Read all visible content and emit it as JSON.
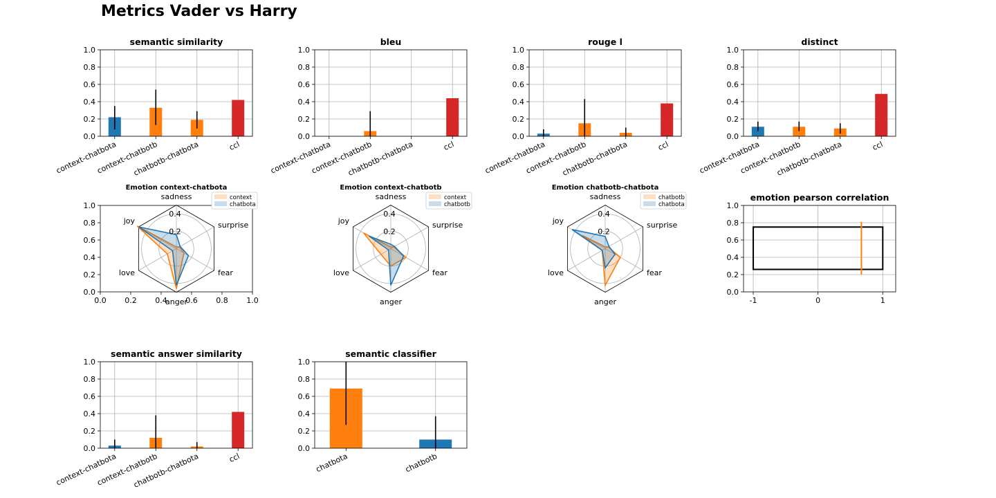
{
  "figure": {
    "title": "Metrics Vader vs Harry"
  },
  "colors": {
    "blue": "#1f77b4",
    "orange": "#ff7f0e",
    "red": "#d62728",
    "grid": "#b0b0b0"
  },
  "chart_data": [
    {
      "type": "bar",
      "title": "semantic similarity",
      "categories": [
        "context-chatbota",
        "context-chatbotb",
        "chatbotb-chatbota",
        "ccl"
      ],
      "values": [
        0.22,
        0.33,
        0.19,
        0.42
      ],
      "errors": [
        [
          0.08,
          0.35
        ],
        [
          0.13,
          0.54
        ],
        [
          0.09,
          0.29
        ],
        null
      ],
      "bar_colors": [
        "blue",
        "orange",
        "orange",
        "red"
      ],
      "ylim": [
        0,
        1
      ],
      "yticks": [
        "0.0",
        "0.2",
        "0.4",
        "0.6",
        "0.8",
        "1.0"
      ],
      "grid": true
    },
    {
      "type": "bar",
      "title": "bleu",
      "categories": [
        "context-chatbota",
        "context-chatbotb",
        "chatbotb-chatbota",
        "ccl"
      ],
      "values": [
        0.0,
        0.06,
        0.0,
        0.44
      ],
      "errors": [
        null,
        [
          0.0,
          0.29
        ],
        null,
        null
      ],
      "bar_colors": [
        "blue",
        "orange",
        "orange",
        "red"
      ],
      "ylim": [
        0,
        1
      ],
      "yticks": [
        "0.0",
        "0.2",
        "0.4",
        "0.6",
        "0.8",
        "1.0"
      ],
      "grid": true
    },
    {
      "type": "bar",
      "title": "rouge l",
      "categories": [
        "context-chatbota",
        "context-chatbotb",
        "chatbotb-chatbota",
        "ccl"
      ],
      "values": [
        0.03,
        0.15,
        0.04,
        0.38
      ],
      "errors": [
        [
          0.0,
          0.08
        ],
        [
          0.0,
          0.43
        ],
        [
          0.0,
          0.1
        ],
        null
      ],
      "bar_colors": [
        "blue",
        "orange",
        "orange",
        "red"
      ],
      "ylim": [
        0,
        1
      ],
      "yticks": [
        "0.0",
        "0.2",
        "0.4",
        "0.6",
        "0.8",
        "1.0"
      ],
      "grid": true
    },
    {
      "type": "bar",
      "title": "distinct",
      "categories": [
        "context-chatbota",
        "context-chatbotb",
        "chatbotb-chatbota",
        "ccl"
      ],
      "values": [
        0.11,
        0.11,
        0.09,
        0.49
      ],
      "errors": [
        [
          0.06,
          0.17
        ],
        [
          0.06,
          0.17
        ],
        [
          0.03,
          0.15
        ],
        null
      ],
      "bar_colors": [
        "blue",
        "orange",
        "orange",
        "red"
      ],
      "ylim": [
        0,
        1
      ],
      "yticks": [
        "0.0",
        "0.2",
        "0.4",
        "0.6",
        "0.8",
        "1.0"
      ],
      "grid": true
    },
    {
      "type": "radar",
      "title": "Emotion context-chatbota",
      "axes": [
        "sadness",
        "surprise",
        "fear",
        "anger",
        "love",
        "joy"
      ],
      "rmax": 0.5,
      "rticks": [
        {
          "value": 0.2,
          "label": "0.2"
        },
        {
          "value": 0.4,
          "label": "0.4"
        }
      ],
      "series": [
        {
          "name": "context",
          "color": "orange",
          "values": [
            0.02,
            0.04,
            0.1,
            0.46,
            0.12,
            0.52
          ]
        },
        {
          "name": "chatbota",
          "color": "blue",
          "values": [
            0.16,
            0.05,
            0.16,
            0.42,
            0.05,
            0.5
          ]
        }
      ],
      "cartesian_frame": {
        "xticks": [
          "0.0",
          "0.2",
          "0.4",
          "0.6",
          "0.8",
          "1.0"
        ],
        "yticks": [
          "0.0",
          "0.2",
          "0.4",
          "0.6",
          "0.8",
          "1.0"
        ]
      }
    },
    {
      "type": "radar",
      "title": "Emotion context-chatbotb",
      "axes": [
        "sadness",
        "surprise",
        "fear",
        "anger",
        "love",
        "joy"
      ],
      "rmax": 0.5,
      "rticks": [
        {
          "value": 0.2,
          "label": "0.2"
        },
        {
          "value": 0.4,
          "label": "0.4"
        }
      ],
      "series": [
        {
          "name": "context",
          "color": "orange",
          "values": [
            0.02,
            0.04,
            0.2,
            0.2,
            0.13,
            0.36
          ]
        },
        {
          "name": "chatbotb",
          "color": "blue",
          "values": [
            0.05,
            0.05,
            0.17,
            0.42,
            0.03,
            0.29
          ]
        }
      ]
    },
    {
      "type": "radar",
      "title": "Emotion chatbotb-chatbota",
      "axes": [
        "sadness",
        "surprise",
        "fear",
        "anger",
        "love",
        "joy"
      ],
      "rmax": 0.5,
      "rticks": [
        {
          "value": 0.2,
          "label": "0.2"
        },
        {
          "value": 0.4,
          "label": "0.4"
        }
      ],
      "series": [
        {
          "name": "chatbotb",
          "color": "orange",
          "values": [
            0.02,
            0.04,
            0.2,
            0.42,
            0.04,
            0.3
          ]
        },
        {
          "name": "chatbota",
          "color": "blue",
          "values": [
            0.14,
            0.05,
            0.13,
            0.22,
            0.04,
            0.44
          ]
        }
      ]
    },
    {
      "type": "box",
      "title": "emotion pearson correlation",
      "xlim": [
        -1.15,
        1.2
      ],
      "xticks": [
        {
          "value": -1,
          "label": "-1"
        },
        {
          "value": 0,
          "label": "0"
        },
        {
          "value": 1,
          "label": "1"
        }
      ],
      "ylim": [
        0,
        1
      ],
      "yticks": [
        "0.0",
        "0.2",
        "0.4",
        "0.6",
        "0.8",
        "1.0"
      ],
      "grid": true,
      "box": {
        "x0": -1.0,
        "x1": 1.0,
        "y0": 0.26,
        "y1": 0.75
      },
      "marker_line": {
        "x": 0.67,
        "y0": 0.2,
        "y1": 0.81,
        "color": "orange"
      }
    },
    {
      "type": "bar",
      "title": "semantic answer similarity",
      "categories": [
        "context-chatbota",
        "context-chatbotb",
        "chatbotb-chatbota",
        "ccl"
      ],
      "values": [
        0.03,
        0.12,
        0.02,
        0.42
      ],
      "errors": [
        [
          0.0,
          0.1
        ],
        [
          0.0,
          0.38
        ],
        [
          0.0,
          0.07
        ],
        null
      ],
      "bar_colors": [
        "blue",
        "orange",
        "orange",
        "red"
      ],
      "ylim": [
        0,
        1
      ],
      "yticks": [
        "0.0",
        "0.2",
        "0.4",
        "0.6",
        "0.8",
        "1.0"
      ],
      "grid": true
    },
    {
      "type": "bar",
      "title": "semantic classifier",
      "categories": [
        "chatbota",
        "chatbotb"
      ],
      "values": [
        0.69,
        0.1
      ],
      "errors": [
        [
          0.27,
          1.0
        ],
        [
          0.0,
          0.37
        ]
      ],
      "bar_colors": [
        "orange",
        "blue"
      ],
      "ylim": [
        0,
        1
      ],
      "yticks": [
        "0.0",
        "0.2",
        "0.4",
        "0.6",
        "0.8",
        "1.0"
      ],
      "grid": true
    }
  ]
}
